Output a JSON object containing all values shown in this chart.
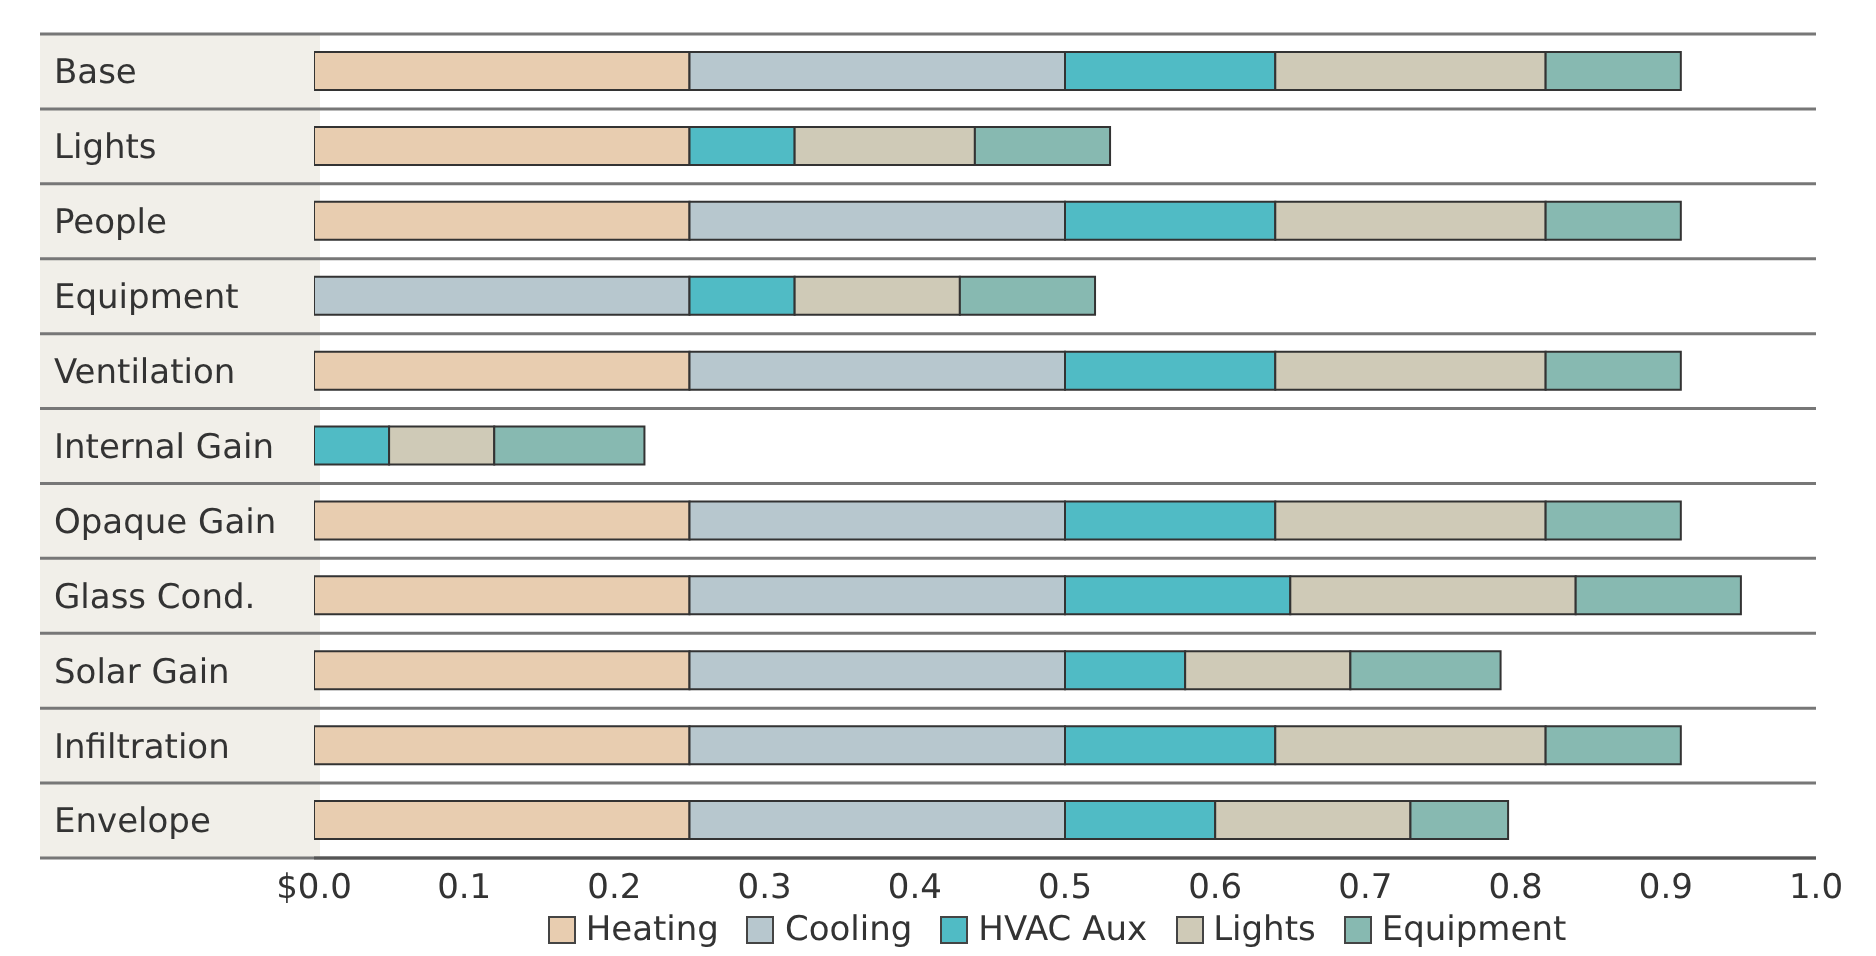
{
  "chart_data": {
    "type": "bar",
    "orientation": "horizontal",
    "stacked": true,
    "categories": [
      "Base",
      "Lights",
      "People",
      "Equipment",
      "Ventilation",
      "Internal Gain",
      "Opaque Gain",
      "Glass Cond.",
      "Solar Gain",
      "Infiltration",
      "Envelope"
    ],
    "series": [
      {
        "name": "Heating",
        "color": "#e8cdb0",
        "values": [
          0.25,
          0.25,
          0.25,
          0,
          0.25,
          0,
          0.25,
          0.25,
          0.25,
          0.25,
          0.25
        ]
      },
      {
        "name": "Cooling",
        "color": "#b7c7ce",
        "values": [
          0.25,
          0,
          0.25,
          0.25,
          0.25,
          0,
          0.25,
          0.25,
          0.25,
          0.25,
          0.25
        ]
      },
      {
        "name": "HVAC Aux",
        "color": "#50bbc5",
        "values": [
          0.14,
          0.07,
          0.14,
          0.07,
          0.14,
          0.05,
          0.14,
          0.15,
          0.08,
          0.14,
          0.1
        ]
      },
      {
        "name": "Lights",
        "color": "#cfcab7",
        "values": [
          0.18,
          0.12,
          0.18,
          0.11,
          0.18,
          0.07,
          0.18,
          0.19,
          0.11,
          0.18,
          0.13
        ]
      },
      {
        "name": "Equipment",
        "color": "#87b9b1",
        "values": [
          0.09,
          0.09,
          0.09,
          0.09,
          0.09,
          0.1,
          0.09,
          0.11,
          0.1,
          0.09,
          0.065
        ]
      }
    ],
    "xlim": [
      0,
      1
    ],
    "xticks": [
      {
        "value": 0,
        "label": "$0.0"
      },
      0.1,
      0.2,
      0.3,
      0.4,
      0.5,
      0.6,
      0.7,
      0.8,
      0.9,
      {
        "value": 1,
        "label": "1.0"
      }
    ],
    "grid": "y",
    "legend": "bottom"
  }
}
